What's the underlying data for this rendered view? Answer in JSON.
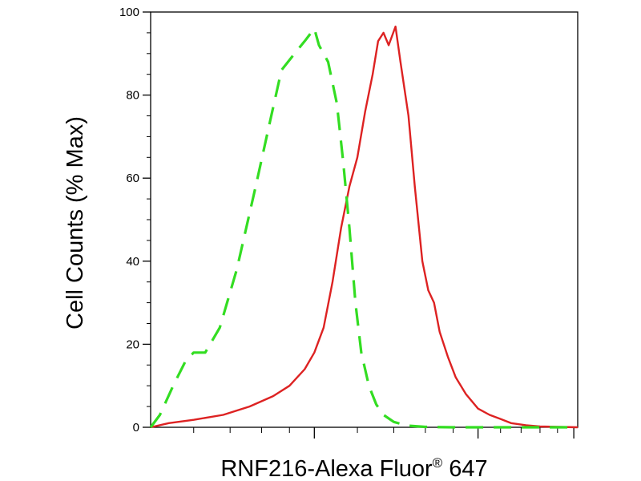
{
  "chart_data": {
    "type": "line",
    "title": "",
    "xlabel": "RNF216-Alexa Fluor",
    "xlabel_superscript": "®",
    "xlabel_suffix": " 647",
    "ylabel": "Cell Counts (% Max)",
    "xscale": "log",
    "xlim": [
      0.5,
      3.05
    ],
    "ylim": [
      0,
      100
    ],
    "y_ticks": [
      0,
      20,
      40,
      60,
      80,
      100
    ],
    "x_major_ticks": [
      1,
      2,
      3
    ],
    "grid": false,
    "legend": "none",
    "series": [
      {
        "color": "#dd2222",
        "line_style": "solid",
        "points": [
          [
            0.5,
            0
          ],
          [
            0.54,
            1
          ],
          [
            0.6,
            1.8
          ],
          [
            0.68,
            3
          ],
          [
            0.76,
            5
          ],
          [
            0.84,
            7.5
          ],
          [
            0.9,
            10
          ],
          [
            0.96,
            14
          ],
          [
            1.0,
            18
          ],
          [
            1.04,
            24
          ],
          [
            1.08,
            35
          ],
          [
            1.12,
            48
          ],
          [
            1.16,
            58
          ],
          [
            1.2,
            65
          ],
          [
            1.24,
            76
          ],
          [
            1.28,
            85
          ],
          [
            1.31,
            93
          ],
          [
            1.34,
            95
          ],
          [
            1.37,
            92
          ],
          [
            1.41,
            96.5
          ],
          [
            1.44,
            88
          ],
          [
            1.49,
            75
          ],
          [
            1.53,
            58
          ],
          [
            1.58,
            40
          ],
          [
            1.62,
            33
          ],
          [
            1.66,
            30
          ],
          [
            1.7,
            23
          ],
          [
            1.76,
            17
          ],
          [
            1.82,
            12
          ],
          [
            1.9,
            8
          ],
          [
            2.0,
            4.5
          ],
          [
            2.1,
            3
          ],
          [
            2.2,
            2
          ],
          [
            2.3,
            1
          ],
          [
            2.45,
            0.5
          ],
          [
            2.6,
            0.2
          ],
          [
            3.05,
            0
          ]
        ]
      },
      {
        "color": "#33dd22",
        "line_style": "dashed",
        "points": [
          [
            0.5,
            0
          ],
          [
            0.52,
            3
          ],
          [
            0.55,
            10
          ],
          [
            0.58,
            16
          ],
          [
            0.6,
            18
          ],
          [
            0.63,
            18
          ],
          [
            0.67,
            24
          ],
          [
            0.72,
            38
          ],
          [
            0.78,
            58
          ],
          [
            0.83,
            74
          ],
          [
            0.87,
            86
          ],
          [
            0.92,
            90
          ],
          [
            0.96,
            93
          ],
          [
            1.0,
            96
          ],
          [
            1.02,
            92
          ],
          [
            1.06,
            88
          ],
          [
            1.1,
            78
          ],
          [
            1.13,
            64
          ],
          [
            1.16,
            48
          ],
          [
            1.19,
            30
          ],
          [
            1.22,
            18
          ],
          [
            1.26,
            10
          ],
          [
            1.3,
            5.5
          ],
          [
            1.34,
            3
          ],
          [
            1.4,
            1.3
          ],
          [
            1.48,
            0.4
          ],
          [
            1.6,
            0.1
          ],
          [
            1.8,
            0
          ],
          [
            2.2,
            0
          ],
          [
            3.05,
            0
          ]
        ]
      }
    ]
  }
}
